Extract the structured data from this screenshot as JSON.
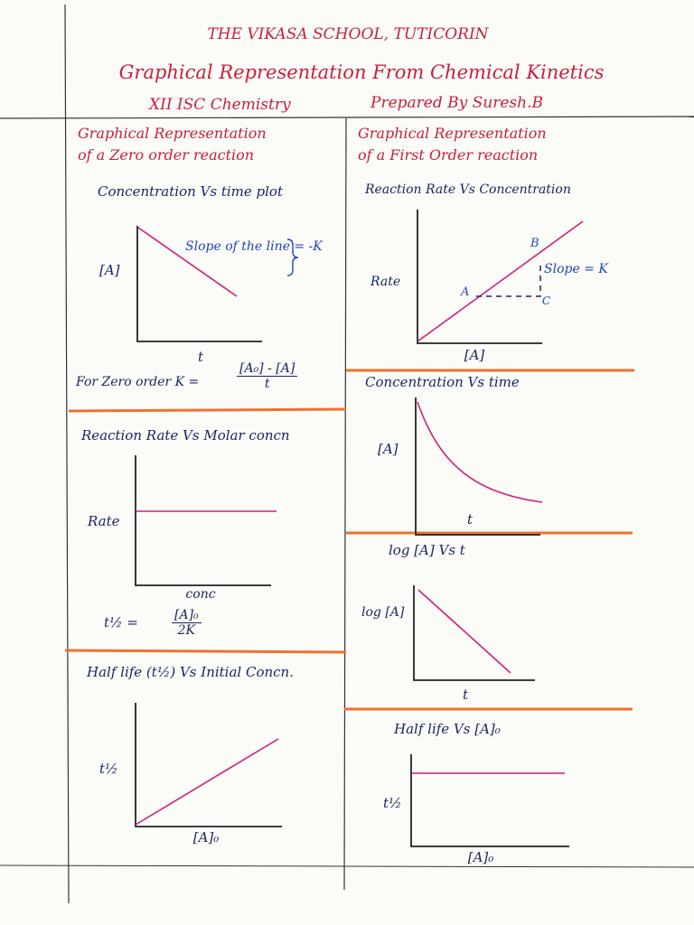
{
  "header": {
    "school": "THE VIKASA SCHOOL, TUTICORIN",
    "title": "Graphical Representation From Chemical Kinetics",
    "class": "XII ISC Chemistry",
    "author": "Prepared By Suresh.B"
  },
  "zero_order": {
    "heading_line1": "Graphical Representation",
    "heading_line2": "of a Zero order reaction",
    "graphs": [
      {
        "title": "Concentration Vs time plot",
        "y_label": "[A]",
        "x_label": "t",
        "note": "Slope of the line = -K",
        "formula": {
          "lhs": "For Zero order K =",
          "numerator": "[A₀] - [A]",
          "denominator": "t"
        }
      },
      {
        "title": "Reaction Rate Vs Molar concn",
        "y_label": "Rate",
        "x_label": "conc",
        "formula": {
          "lhs": "t½ =",
          "numerator": "[A]₀",
          "denominator": "2K"
        }
      },
      {
        "title": "Half life (t½) Vs Initial Concn.",
        "y_label": "t½",
        "x_label": "[A]₀"
      }
    ]
  },
  "first_order": {
    "heading_line1": "Graphical Representation",
    "heading_line2": "of a First Order reaction",
    "graphs": [
      {
        "title": "Reaction Rate Vs Concentration",
        "y_label": "Rate",
        "x_label": "[A]",
        "point_a": "A",
        "point_b": "B",
        "point_c": "C",
        "note": "Slope = K"
      },
      {
        "title": "Concentration Vs time",
        "y_label": "[A]",
        "x_label": "t"
      },
      {
        "title": "log [A] Vs t",
        "y_label": "log [A]",
        "x_label": "t"
      },
      {
        "title": "Half life Vs [A]₀",
        "y_label": "t½",
        "x_label": "[A]₀"
      }
    ]
  }
}
